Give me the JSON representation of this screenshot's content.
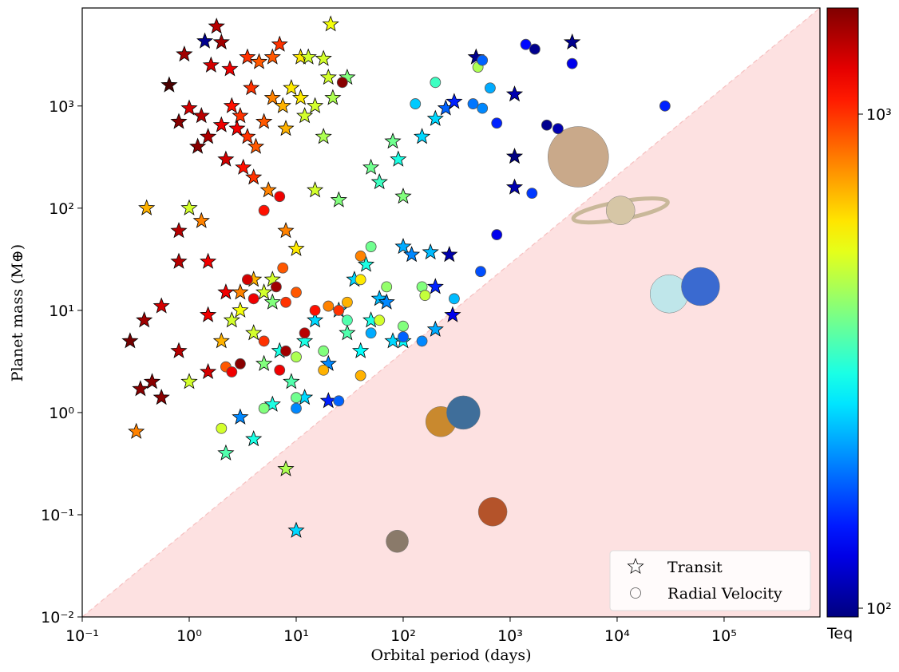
{
  "chart_data": {
    "type": "scatter",
    "x_label": "Orbital period (days)",
    "y_label": "Planet mass (M⊕)",
    "log_x": true,
    "log_y": true,
    "xlim": [
      0.1,
      787000
    ],
    "ylim": [
      0.01,
      9100
    ],
    "xticks": [
      {
        "value": 0.1,
        "label": "10⁻¹"
      },
      {
        "value": 1,
        "label": "10⁰"
      },
      {
        "value": 10,
        "label": "10¹"
      },
      {
        "value": 100,
        "label": "10²"
      },
      {
        "value": 1000,
        "label": "10³"
      },
      {
        "value": 10000,
        "label": "10⁴"
      },
      {
        "value": 100000,
        "label": "10⁵"
      }
    ],
    "yticks": [
      {
        "value": 0.01,
        "label": "10⁻²"
      },
      {
        "value": 0.1,
        "label": "10⁻¹"
      },
      {
        "value": 1,
        "label": "10⁰"
      },
      {
        "value": 10,
        "label": "10¹"
      },
      {
        "value": 100,
        "label": "10²"
      },
      {
        "value": 1000,
        "label": "10³"
      }
    ],
    "colorbar_label": "Teq",
    "clim": [
      96,
      1640
    ],
    "colormap": "jet",
    "cticks": [
      {
        "value": 100,
        "label": "10²"
      },
      {
        "value": 1000,
        "label": "10³"
      }
    ],
    "legend": "lower right",
    "series": [
      {
        "name": "Transit",
        "marker": "star",
        "x": [
          1.8,
          1.4,
          2.0,
          0.9,
          1.6,
          2.4,
          3.5,
          7.0,
          6.0,
          4.5,
          11,
          13,
          21,
          18,
          0.65,
          1.0,
          0.8,
          1.3,
          2.0,
          2.5,
          3.0,
          3.5,
          4.2,
          5.0,
          6.0,
          7.5,
          9,
          11,
          1.2,
          1.5,
          2.2,
          3.2,
          4.0,
          2.8,
          3.8,
          5.5,
          8,
          12,
          15,
          20,
          30,
          22,
          18,
          1.0,
          0.4,
          1.3,
          0.8,
          1.5,
          0.8,
          2.2,
          0.55,
          0.38,
          0.28,
          0.35,
          0.45,
          0.55,
          0.32,
          0.8,
          1.0,
          1.5,
          2.0,
          2.5,
          3.0,
          4.0,
          5.0,
          6,
          7,
          8,
          10,
          9,
          12,
          15,
          20,
          25,
          30,
          40,
          50,
          60,
          80,
          100,
          120,
          180,
          270,
          200,
          290,
          200,
          45,
          50,
          60,
          80,
          90,
          100,
          150,
          200,
          250,
          300,
          480,
          1100,
          3800,
          1100,
          1100,
          25,
          15,
          8,
          10,
          4,
          6,
          1.5,
          3,
          5,
          20,
          4,
          2.2,
          3.0,
          6.0,
          12,
          100,
          70,
          35
        ],
        "values": [
          6000,
          4300,
          4200,
          3200,
          2500,
          2300,
          3000,
          4000,
          3000,
          2700,
          3000,
          3000,
          6300,
          2900,
          1600,
          950,
          700,
          800,
          650,
          1000,
          800,
          500,
          400,
          700,
          1200,
          1000,
          1500,
          1200,
          400,
          500,
          300,
          250,
          200,
          600,
          1500,
          150,
          600,
          800,
          1000,
          1900,
          1900,
          1200,
          500,
          100,
          100,
          75,
          60,
          30,
          30,
          15,
          11,
          8,
          5,
          1.7,
          2,
          1.4,
          0.65,
          4,
          2,
          2.5,
          5,
          8,
          10,
          6,
          3,
          12,
          4,
          0.28,
          0.07,
          2,
          5,
          8,
          3,
          10,
          6,
          4,
          8,
          13,
          5,
          42,
          35,
          37,
          35,
          17,
          9,
          6.5,
          28,
          250,
          180,
          450,
          300,
          130,
          500,
          750,
          950,
          1100,
          3000,
          1300,
          4200,
          320,
          160,
          120,
          150,
          60,
          40,
          20,
          20,
          9,
          15,
          15,
          1.3,
          0.55,
          0.4,
          0.9,
          1.2,
          1.4,
          5,
          12,
          20
        ],
        "teq": [
          1400,
          100,
          1500,
          1500,
          1300,
          1200,
          1000,
          1000,
          900,
          900,
          600,
          500,
          550,
          500,
          1900,
          1300,
          1600,
          1400,
          1200,
          1100,
          1000,
          1000,
          900,
          900,
          800,
          700,
          600,
          600,
          1600,
          1450,
          1300,
          1100,
          1000,
          1200,
          1000,
          800,
          700,
          500,
          500,
          500,
          400,
          450,
          450,
          500,
          700,
          800,
          1400,
          1200,
          1400,
          1200,
          1300,
          1500,
          1700,
          1600,
          1600,
          1600,
          800,
          1400,
          500,
          1300,
          700,
          500,
          550,
          500,
          400,
          400,
          300,
          450,
          250,
          350,
          300,
          250,
          200,
          250,
          350,
          280,
          300,
          230,
          250,
          220,
          200,
          230,
          110,
          150,
          130,
          220,
          300,
          380,
          330,
          380,
          300,
          400,
          250,
          250,
          180,
          150,
          100,
          110,
          100,
          97,
          110,
          400,
          500,
          800,
          600,
          700,
          500,
          1200,
          800,
          500,
          150,
          300,
          350,
          200,
          300,
          250,
          280,
          200,
          250
        ]
      },
      {
        "name": "Radial Velocity",
        "marker": "circle",
        "x": [
          27,
          500,
          550,
          1400,
          1700,
          3800,
          450,
          550,
          200,
          130,
          650,
          750,
          2200,
          2800,
          1600,
          750,
          530,
          28000,
          7.0,
          5.0,
          50,
          40,
          7.5,
          3.5,
          6.5,
          4,
          8,
          10,
          15,
          20,
          25,
          30,
          40,
          150,
          160,
          300,
          150,
          100,
          50,
          12,
          8,
          5,
          3,
          2.2,
          2.5,
          7,
          10,
          18,
          25,
          10,
          10,
          5,
          2,
          18,
          40,
          60,
          70,
          100,
          30
        ],
        "values": [
          1700,
          2400,
          2800,
          4000,
          3600,
          2600,
          1050,
          950,
          1700,
          1050,
          1500,
          680,
          650,
          600,
          140,
          55,
          24,
          1000,
          130,
          95,
          42,
          34,
          26,
          20,
          17,
          13,
          12,
          15,
          10,
          11,
          10,
          12,
          20,
          17,
          14,
          13,
          5,
          5.5,
          6,
          6,
          4,
          5,
          3,
          2.8,
          2.5,
          2.6,
          3.5,
          2.6,
          1.3,
          1.4,
          1.1,
          1.1,
          0.7,
          4,
          2.3,
          8,
          17,
          7,
          8
        ],
        "teq": [
          1600,
          450,
          180,
          140,
          100,
          130,
          190,
          200,
          330,
          240,
          220,
          150,
          100,
          110,
          160,
          130,
          170,
          150,
          1200,
          1100,
          380,
          800,
          900,
          1300,
          1500,
          1200,
          1000,
          900,
          1100,
          800,
          1000,
          700,
          600,
          400,
          480,
          230,
          200,
          180,
          220,
          1400,
          1500,
          1000,
          1600,
          900,
          1200,
          1200,
          450,
          700,
          180,
          380,
          200,
          400,
          500,
          400,
          700,
          500,
          420,
          400,
          350
        ]
      }
    ],
    "solar_system": {
      "x": [
        88,
        225,
        365,
        687,
        4333,
        10759,
        30687,
        60190
      ],
      "values": [
        0.055,
        0.815,
        1,
        0.107,
        318,
        95,
        14.5,
        17.1
      ],
      "colors": [
        "#8a7a6a",
        "#c9892e",
        "#3f6e9a",
        "#b4532a",
        "#c9a98a",
        "#d6c6a6",
        "#bfe6ea",
        "#3a6ad0"
      ]
    }
  }
}
